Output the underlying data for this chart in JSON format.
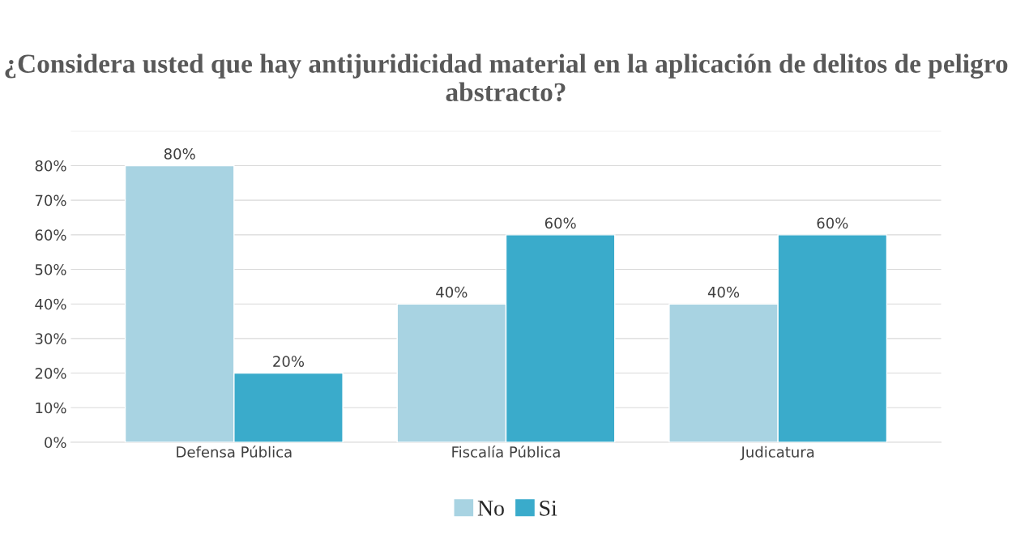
{
  "chart_data": {
    "type": "bar",
    "title": "¿Considera usted que hay antijuridicidad material en la aplicación de delitos de peligro abstracto?",
    "categories": [
      "Defensa Pública",
      "Fiscalía Pública",
      "Judicatura"
    ],
    "series": [
      {
        "name": "No",
        "color": "#a8d3e2",
        "values": [
          80,
          40,
          40
        ],
        "value_labels": [
          "80%",
          "40%",
          "40%"
        ]
      },
      {
        "name": "Si",
        "color": "#3aabcb",
        "values": [
          20,
          60,
          60
        ],
        "value_labels": [
          "20%",
          "60%",
          "60%"
        ]
      }
    ],
    "ylim": [
      0,
      90
    ],
    "yticks": [
      {
        "value": 0,
        "label": "0%"
      },
      {
        "value": 10,
        "label": "10%"
      },
      {
        "value": 20,
        "label": "20%"
      },
      {
        "value": 30,
        "label": "30%"
      },
      {
        "value": 40,
        "label": "40%"
      },
      {
        "value": 50,
        "label": "50%"
      },
      {
        "value": 60,
        "label": "60%"
      },
      {
        "value": 70,
        "label": "70%"
      },
      {
        "value": 80,
        "label": "80%"
      },
      {
        "value": 90,
        "label": null
      }
    ],
    "grid": "y",
    "legend": "bottom"
  }
}
